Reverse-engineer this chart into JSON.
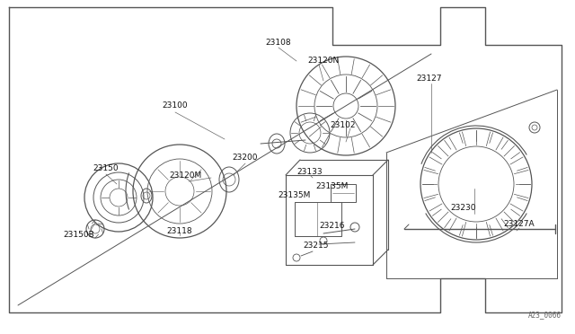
{
  "bg_color": "#ffffff",
  "line_color": "#555555",
  "lw_main": 0.8,
  "watermark": "A23_0066",
  "font_size": 6.5,
  "labels": [
    [
      "23100",
      195,
      118
    ],
    [
      "23108",
      310,
      52
    ],
    [
      "23120N",
      338,
      72
    ],
    [
      "23102",
      390,
      138
    ],
    [
      "23127",
      490,
      88
    ],
    [
      "23150",
      115,
      188
    ],
    [
      "23150B",
      90,
      258
    ],
    [
      "23120M",
      205,
      198
    ],
    [
      "23118",
      205,
      258
    ],
    [
      "23200",
      275,
      178
    ],
    [
      "23133",
      348,
      195
    ],
    [
      "23135M",
      330,
      220
    ],
    [
      "23135M",
      368,
      210
    ],
    [
      "23216",
      375,
      252
    ],
    [
      "23215",
      358,
      272
    ],
    [
      "23230",
      520,
      230
    ],
    [
      "23127A",
      580,
      248
    ]
  ]
}
